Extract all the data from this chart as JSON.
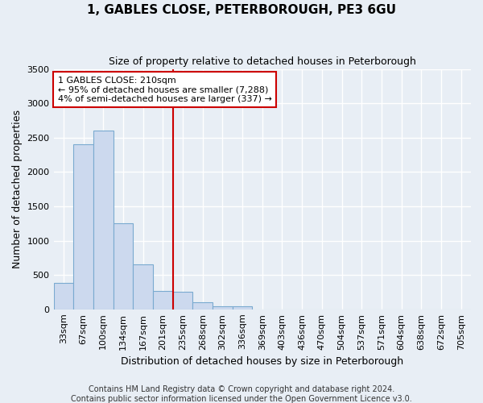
{
  "title1": "1, GABLES CLOSE, PETERBOROUGH, PE3 6GU",
  "title2": "Size of property relative to detached houses in Peterborough",
  "xlabel": "Distribution of detached houses by size in Peterborough",
  "ylabel": "Number of detached properties",
  "footer1": "Contains HM Land Registry data © Crown copyright and database right 2024.",
  "footer2": "Contains public sector information licensed under the Open Government Licence v3.0.",
  "categories": [
    "33sqm",
    "67sqm",
    "100sqm",
    "134sqm",
    "167sqm",
    "201sqm",
    "235sqm",
    "268sqm",
    "302sqm",
    "336sqm",
    "369sqm",
    "403sqm",
    "436sqm",
    "470sqm",
    "504sqm",
    "537sqm",
    "571sqm",
    "604sqm",
    "638sqm",
    "672sqm",
    "705sqm"
  ],
  "bar_values": [
    390,
    2400,
    2600,
    1250,
    650,
    270,
    260,
    100,
    50,
    40,
    0,
    0,
    0,
    0,
    0,
    0,
    0,
    0,
    0,
    0,
    0
  ],
  "bar_color": "#ccd9ee",
  "bar_edge_color": "#7aaad0",
  "bg_color": "#e8eef5",
  "grid_color": "#ffffff",
  "vline_x_idx": 5.5,
  "vline_color": "#cc0000",
  "ylim": [
    0,
    3500
  ],
  "yticks": [
    0,
    500,
    1000,
    1500,
    2000,
    2500,
    3000,
    3500
  ],
  "annotation_line1": "1 GABLES CLOSE: 210sqm",
  "annotation_line2": "← 95% of detached houses are smaller (7,288)",
  "annotation_line3": "4% of semi-detached houses are larger (337) →",
  "annotation_box_color": "#ffffff",
  "annotation_edge_color": "#cc0000",
  "title1_fontsize": 11,
  "title2_fontsize": 9,
  "ylabel_fontsize": 9,
  "xlabel_fontsize": 9,
  "tick_fontsize": 8,
  "footer_fontsize": 7
}
